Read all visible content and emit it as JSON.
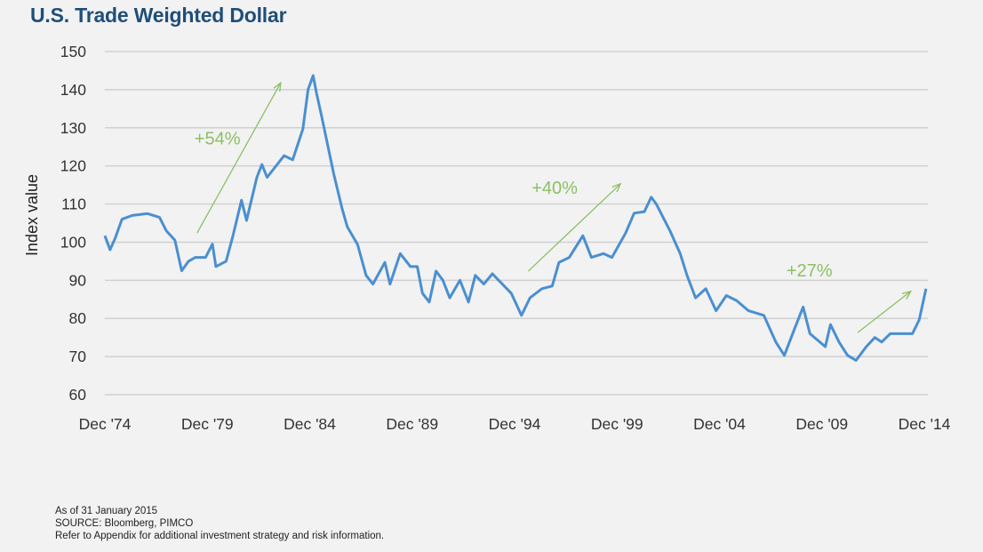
{
  "chart_data": {
    "type": "line",
    "title": "U.S. Trade Weighted Dollar",
    "xlabel": "",
    "ylabel": "Index value",
    "ylim": [
      60,
      150
    ],
    "yticks": [
      60,
      70,
      80,
      90,
      100,
      110,
      120,
      130,
      140,
      150
    ],
    "xlim": [
      "1974-12",
      "2014-12"
    ],
    "xtick_labels": [
      "Dec '74",
      "Dec '79",
      "Dec '84",
      "Dec '89",
      "Dec '94",
      "Dec '99",
      "Dec '04",
      "Dec '09",
      "Dec '14"
    ],
    "xtick_dates": [
      "1974-12",
      "1979-12",
      "1984-12",
      "1989-12",
      "1994-12",
      "1999-12",
      "2004-12",
      "2009-12",
      "2014-12"
    ],
    "grid": true,
    "line_color": "#4a8fd0",
    "annotation_color": "#8cbf64",
    "series": [
      {
        "points": [
          [
            "1974-12",
            101.7
          ],
          [
            "1975-03",
            98
          ],
          [
            "1975-06",
            101
          ],
          [
            "1975-10",
            106
          ],
          [
            "1976-04",
            107
          ],
          [
            "1977-01",
            107.5
          ],
          [
            "1977-08",
            106.5
          ],
          [
            "1977-12",
            103
          ],
          [
            "1978-05",
            100.5
          ],
          [
            "1978-09",
            92.5
          ],
          [
            "1979-01",
            95
          ],
          [
            "1979-05",
            96
          ],
          [
            "1979-11",
            96
          ],
          [
            "1980-03",
            99.5
          ],
          [
            "1980-05",
            93.6
          ],
          [
            "1980-11",
            95
          ],
          [
            "1981-03",
            101.7
          ],
          [
            "1981-08",
            111
          ],
          [
            "1981-11",
            105.7
          ],
          [
            "1982-05",
            117
          ],
          [
            "1982-08",
            120.4
          ],
          [
            "1982-11",
            117
          ],
          [
            "1983-09",
            122.7
          ],
          [
            "1984-02",
            121.6
          ],
          [
            "1984-08",
            129.7
          ],
          [
            "1984-11",
            140
          ],
          [
            "1985-02",
            143.7
          ],
          [
            "1985-04",
            139
          ],
          [
            "1985-07",
            133
          ],
          [
            "1986-02",
            118
          ],
          [
            "1986-07",
            108.7
          ],
          [
            "1986-10",
            104
          ],
          [
            "1987-04",
            99.4
          ],
          [
            "1987-09",
            91.3
          ],
          [
            "1988-01",
            89
          ],
          [
            "1988-08",
            94.7
          ],
          [
            "1988-11",
            89
          ],
          [
            "1989-05",
            97
          ],
          [
            "1989-11",
            93.6
          ],
          [
            "1990-03",
            93.6
          ],
          [
            "1990-06",
            86.6
          ],
          [
            "1990-10",
            84.3
          ],
          [
            "1991-02",
            92.4
          ],
          [
            "1991-06",
            90
          ],
          [
            "1991-10",
            85.4
          ],
          [
            "1992-04",
            90
          ],
          [
            "1992-09",
            84.3
          ],
          [
            "1993-01",
            91.3
          ],
          [
            "1993-06",
            89
          ],
          [
            "1993-11",
            91.7
          ],
          [
            "1994-04",
            89.4
          ],
          [
            "1994-10",
            86.6
          ],
          [
            "1995-04",
            80.8
          ],
          [
            "1995-09",
            85.4
          ],
          [
            "1996-04",
            87.8
          ],
          [
            "1996-10",
            88.5
          ],
          [
            "1997-02",
            94.7
          ],
          [
            "1997-08",
            96
          ],
          [
            "1998-04",
            101.7
          ],
          [
            "1998-09",
            96
          ],
          [
            "1999-04",
            97
          ],
          [
            "1999-09",
            96
          ],
          [
            "2000-05",
            102.4
          ],
          [
            "2000-10",
            107.6
          ],
          [
            "2001-04",
            108
          ],
          [
            "2001-08",
            111.8
          ],
          [
            "2001-11",
            110
          ],
          [
            "2002-07",
            103
          ],
          [
            "2003-01",
            97
          ],
          [
            "2003-05",
            91.3
          ],
          [
            "2003-10",
            85.4
          ],
          [
            "2004-04",
            87.8
          ],
          [
            "2004-10",
            82
          ],
          [
            "2005-04",
            86
          ],
          [
            "2005-10",
            84.7
          ],
          [
            "2006-05",
            82
          ],
          [
            "2007-02",
            80.8
          ],
          [
            "2007-09",
            73.8
          ],
          [
            "2008-02",
            70.3
          ],
          [
            "2008-08",
            77.3
          ],
          [
            "2009-01",
            83
          ],
          [
            "2009-05",
            76
          ],
          [
            "2010-02",
            72.6
          ],
          [
            "2010-05",
            78.4
          ],
          [
            "2010-10",
            73.8
          ],
          [
            "2011-03",
            70.3
          ],
          [
            "2011-08",
            69
          ],
          [
            "2012-02",
            72.6
          ],
          [
            "2012-07",
            75
          ],
          [
            "2012-11",
            73.8
          ],
          [
            "2013-04",
            76
          ],
          [
            "2013-10",
            76
          ],
          [
            "2014-05",
            76
          ],
          [
            "2014-09",
            79.6
          ],
          [
            "2015-01",
            87.8
          ]
        ]
      }
    ],
    "annotations": [
      {
        "text": "+54%",
        "from": [
          "1979-06",
          102.4
        ],
        "to": [
          "1983-07",
          141.8
        ]
      },
      {
        "text": "+40%",
        "from": [
          "1995-08",
          92.4
        ],
        "to": [
          "2000-02",
          115.3
        ]
      },
      {
        "text": "+27%",
        "from": [
          "2011-09",
          76.3
        ],
        "to": [
          "2014-04",
          87.1
        ]
      }
    ]
  },
  "footer": {
    "as_of": "As of 31  January 2015",
    "source": "SOURCE: Bloomberg, PIMCO",
    "note": "Refer to Appendix for additional investment strategy and risk information."
  }
}
